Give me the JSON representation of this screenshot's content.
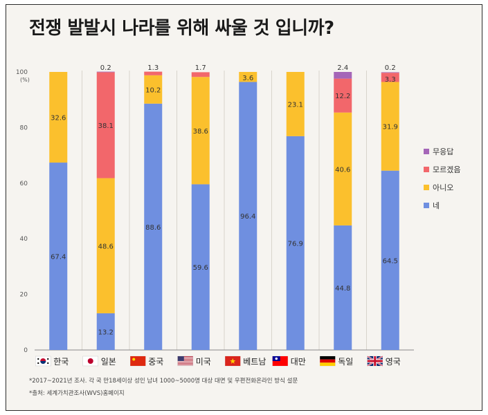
{
  "title": "전쟁 발발시 나라를 위해 싸울 것 입니까?",
  "footnotes": {
    "survey": "*2017~2021년 조사. 각 국 만18세이상 성인 남녀 1000~5000명 대상 대면 및 우편전화온라인 방식 설문",
    "source": "*출처: 세계가치관조사(WVS)홈페이지"
  },
  "colors": {
    "네": "#6f8fe0",
    "아니오": "#fbc02d",
    "모르겠음": "#f2676b",
    "무응답": "#a566b8",
    "background": "#f6f4f0"
  },
  "chart_data": {
    "type": "bar",
    "stacked": true,
    "title": "전쟁 발발시 나라를 위해 싸울 것 입니까?",
    "ylabel": "(%)",
    "ylim": [
      0,
      100
    ],
    "yticks": [
      "0",
      "20",
      "40",
      "60",
      "80",
      "100"
    ],
    "categories": [
      "한국",
      "일본",
      "중국",
      "미국",
      "베트남",
      "대만",
      "독일",
      "영국"
    ],
    "flags": [
      "korea-flag-icon",
      "japan-flag-icon",
      "china-flag-icon",
      "usa-flag-icon",
      "vietnam-flag-icon",
      "taiwan-flag-icon",
      "germany-flag-icon",
      "uk-flag-icon"
    ],
    "series": [
      {
        "name": "네",
        "values": [
          67.4,
          13.2,
          88.6,
          59.6,
          96.4,
          76.9,
          44.8,
          64.5
        ],
        "labels": [
          "67.4",
          "13.2",
          "88.6",
          "59.6",
          "96.4",
          "76.9",
          "44.8",
          "64.5"
        ]
      },
      {
        "name": "아니오",
        "values": [
          32.6,
          48.6,
          10.2,
          38.6,
          3.6,
          23.1,
          40.6,
          31.9
        ],
        "labels": [
          "32.6",
          "48.6",
          "10.2",
          "38.6",
          "3.6",
          "23.1",
          "40.6",
          "31.9"
        ]
      },
      {
        "name": "모르겠음",
        "values": [
          0,
          38.1,
          1.3,
          1.7,
          0,
          0,
          12.2,
          3.3
        ],
        "labels": [
          "",
          "38.1",
          "1.3",
          "1.7",
          "",
          "",
          "12.2",
          "3.3"
        ]
      },
      {
        "name": "무응답",
        "values": [
          0,
          0.2,
          0,
          0,
          0,
          0,
          2.4,
          0.2
        ],
        "labels": [
          "",
          "0.2",
          "",
          "",
          "",
          "",
          "2.4",
          "0.2"
        ]
      }
    ],
    "legend": [
      "무응답",
      "모르겠음",
      "아니오",
      "네"
    ],
    "legend_position": "right"
  }
}
